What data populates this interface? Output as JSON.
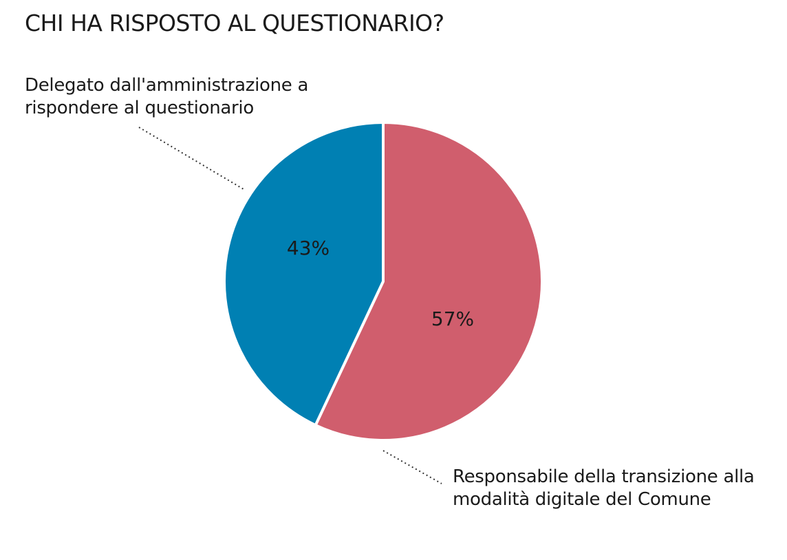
{
  "title": "CHI HA RISPOSTO AL QUESTIONARIO?",
  "chart_data": {
    "type": "pie",
    "title": "CHI HA RISPOSTO AL QUESTIONARIO?",
    "slices": [
      {
        "label_lines": [
          "Delegato dall'amministrazione a",
          "rispondere al questionario"
        ],
        "value": 43,
        "value_label": "43%",
        "color": "#0080b3"
      },
      {
        "label_lines": [
          "Responsabile della transizione alla",
          "modalità digitale del Comune"
        ],
        "value": 57,
        "value_label": "57%",
        "color": "#d05e6d"
      }
    ],
    "start": "12 o'clock",
    "direction": "clockwise, 57% slice first"
  }
}
